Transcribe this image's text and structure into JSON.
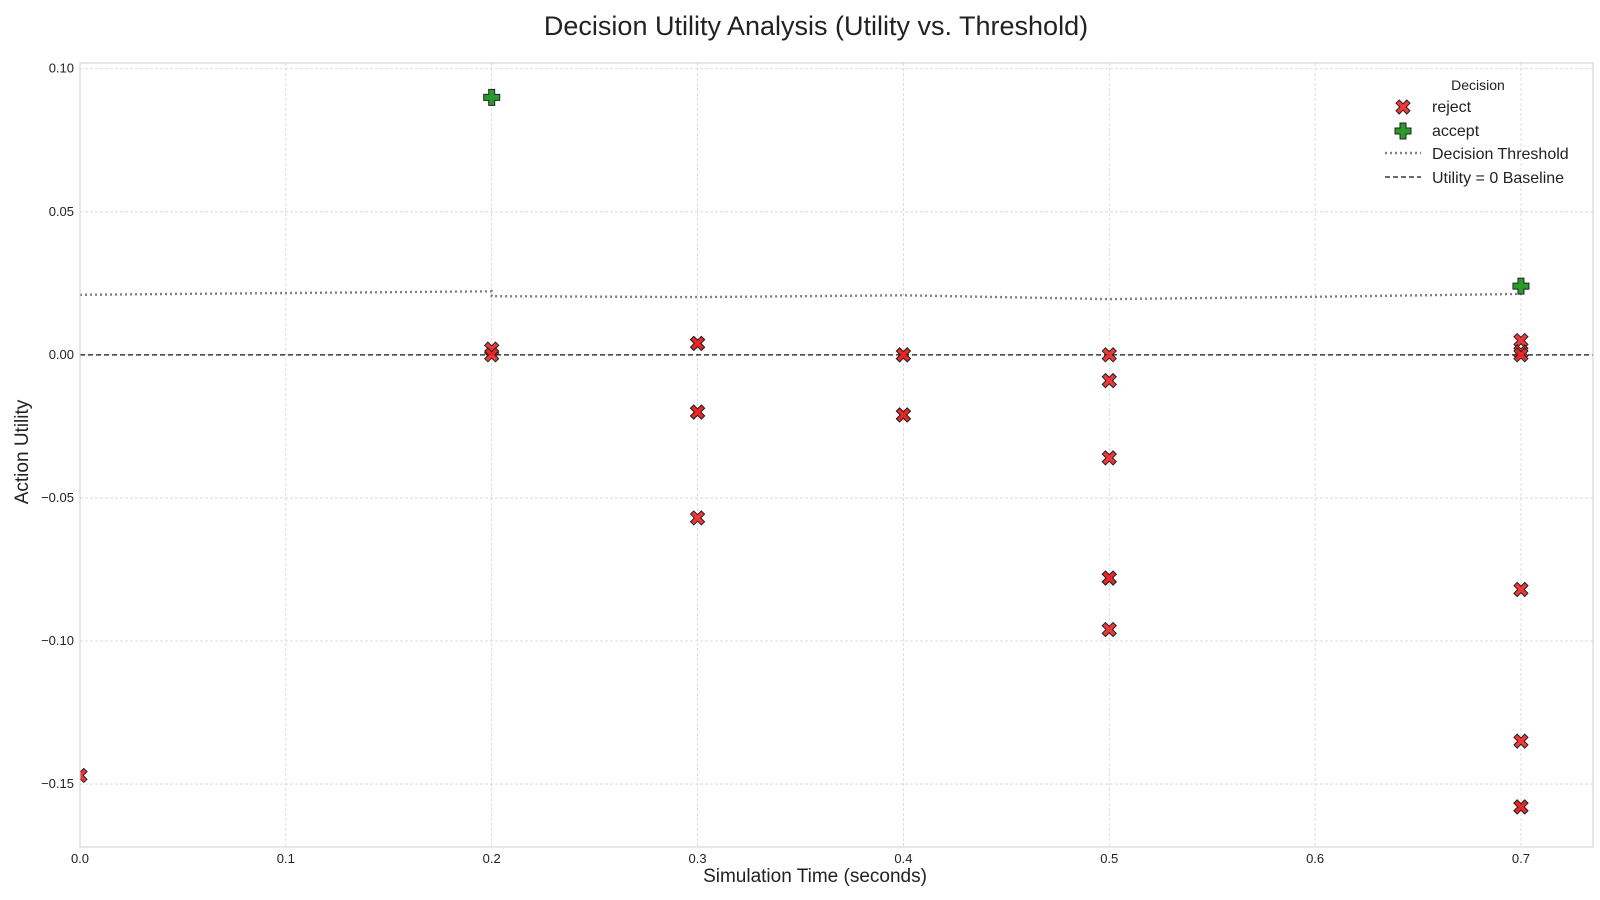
{
  "chart_data": {
    "type": "scatter",
    "title": "Decision Utility Analysis (Utility vs. Threshold)",
    "xlabel": "Simulation Time (seconds)",
    "ylabel": "Action Utility",
    "xlim": [
      0.0,
      0.735
    ],
    "ylim": [
      -0.172,
      0.102
    ],
    "x_ticks": [
      0.0,
      0.1,
      0.2,
      0.3,
      0.4,
      0.5,
      0.6,
      0.7
    ],
    "x_tick_labels": [
      "0.0",
      "0.1",
      "0.2",
      "0.3",
      "0.4",
      "0.5",
      "0.6",
      "0.7"
    ],
    "y_ticks": [
      0.1,
      0.05,
      0.0,
      -0.05,
      -0.1,
      -0.15
    ],
    "y_tick_labels": [
      "0.10",
      "0.05",
      "0.00",
      "−0.05",
      "−0.10",
      "−0.15"
    ],
    "grid": true,
    "legend": {
      "title": "Decision",
      "placement": "top-right",
      "entries": [
        "reject",
        "accept",
        "Decision Threshold",
        "Utility = 0 Baseline"
      ]
    },
    "series": [
      {
        "name": "reject",
        "marker": "x-filled",
        "color": "#ee2222",
        "points": [
          [
            0.0,
            -0.147
          ],
          [
            0.2,
            0.002
          ],
          [
            0.2,
            0.0
          ],
          [
            0.3,
            0.004
          ],
          [
            0.3,
            0.004
          ],
          [
            0.3,
            -0.02
          ],
          [
            0.3,
            -0.02
          ],
          [
            0.3,
            -0.057
          ],
          [
            0.4,
            0.0
          ],
          [
            0.4,
            0.0
          ],
          [
            0.4,
            -0.021
          ],
          [
            0.4,
            -0.021
          ],
          [
            0.5,
            0.0
          ],
          [
            0.5,
            -0.009
          ],
          [
            0.5,
            -0.036
          ],
          [
            0.5,
            -0.078
          ],
          [
            0.5,
            -0.078
          ],
          [
            0.5,
            -0.096
          ],
          [
            0.7,
            0.005
          ],
          [
            0.7,
            0.001
          ],
          [
            0.7,
            0.0
          ],
          [
            0.7,
            -0.082
          ],
          [
            0.7,
            -0.135
          ],
          [
            0.7,
            -0.158
          ],
          [
            0.7,
            -0.158
          ]
        ]
      },
      {
        "name": "accept",
        "marker": "plus-filled",
        "color": "#2a9a2a",
        "points": [
          [
            0.2,
            0.09
          ],
          [
            0.7,
            0.024
          ]
        ]
      },
      {
        "name": "Decision Threshold",
        "type": "line",
        "style": "dotted",
        "color": "#808080",
        "points": [
          [
            0.0,
            0.021
          ],
          [
            0.2,
            0.0222
          ],
          [
            0.2,
            0.0205
          ],
          [
            0.3,
            0.0202
          ],
          [
            0.4,
            0.0208
          ],
          [
            0.5,
            0.0195
          ],
          [
            0.6,
            0.0203
          ],
          [
            0.7,
            0.0213
          ]
        ]
      },
      {
        "name": "Utility = 0 Baseline",
        "type": "hline",
        "style": "dashed",
        "color": "#111111",
        "y": 0.0
      }
    ]
  }
}
